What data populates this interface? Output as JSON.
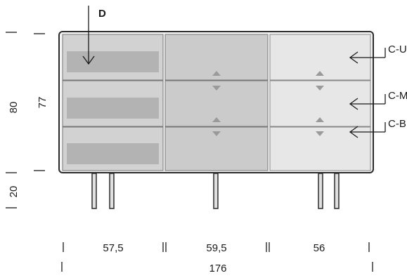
{
  "labels": {
    "drawer": "D",
    "compartment_upper": "C-U",
    "compartment_middle": "C-M",
    "compartment_bottom": "C-B"
  },
  "dimensions": {
    "height_total": "80",
    "height_body": "77",
    "height_legs": "20",
    "width_left": "57,5",
    "width_middle": "59,5",
    "width_right": "56",
    "width_total": "176"
  },
  "colors": {
    "frame": "#2b2b2b",
    "left_panel": "#d2d2d2",
    "left_inset": "#b3b3b3",
    "middle_panel": "#cbcbcb",
    "right_panel": "#e7e7e7",
    "arrows": "#9a9a9a",
    "legs": "#e0e0e0"
  }
}
